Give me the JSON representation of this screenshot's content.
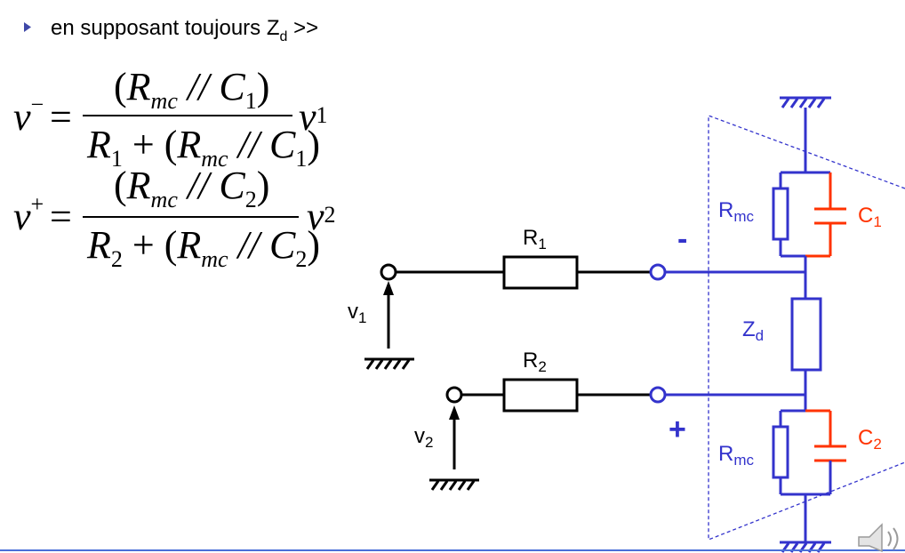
{
  "bullet": {
    "text": "en supposant toujours Z",
    "sub": "d",
    "suffix": " >>"
  },
  "equations": {
    "vminus": {
      "lhs": "v",
      "lhs_sup": "−",
      "eq": "=",
      "num_open": "(",
      "num_R": "R",
      "num_R_sub": "mc",
      "num_par": " // ",
      "num_C": "C",
      "num_C_sub": "1",
      "num_close": ")",
      "den_R": "R",
      "den_R_sub": "1",
      "den_plus": " + (",
      "den_Rm": "R",
      "den_Rm_sub": "mc",
      "den_par": " // ",
      "den_C": "C",
      "den_C_sub": "1",
      "den_close": ")",
      "rhs": "v",
      "rhs_sub": "1"
    },
    "vplus": {
      "lhs": "v",
      "lhs_sup": "+",
      "eq": "=",
      "num_open": "(",
      "num_R": "R",
      "num_R_sub": "mc",
      "num_par": " // ",
      "num_C": "C",
      "num_C_sub": "2",
      "num_close": ")",
      "den_R": "R",
      "den_R_sub": "2",
      "den_plus": " + (",
      "den_Rm": "R",
      "den_Rm_sub": "mc",
      "den_par": " // ",
      "den_C": "C",
      "den_C_sub": "2",
      "den_close": ")",
      "rhs": "v",
      "rhs_sub": "2"
    }
  },
  "circuit": {
    "r1": {
      "main": "R",
      "sub": "1"
    },
    "r2": {
      "main": "R",
      "sub": "2"
    },
    "v1": {
      "main": "v",
      "sub": "1"
    },
    "v2": {
      "main": "v",
      "sub": "2"
    },
    "minus": "-",
    "plus": "+",
    "zd": {
      "main": "Z",
      "sub": "d"
    },
    "rmc_top": {
      "main": "R",
      "sub": "mc"
    },
    "rmc_bottom": {
      "main": "R",
      "sub": "mc"
    },
    "c1": {
      "main": "C",
      "sub": "1"
    },
    "c2": {
      "main": "C",
      "sub": "2"
    }
  },
  "colors": {
    "black": "#000000",
    "blue": "#3333cc",
    "red": "#ff3300",
    "bullet": "#3f48a8",
    "rule": "#4a6fd8"
  },
  "icons": {
    "bullet": "triangle-bullet-icon",
    "ground": "ground-icon",
    "speaker": "speaker-icon"
  }
}
